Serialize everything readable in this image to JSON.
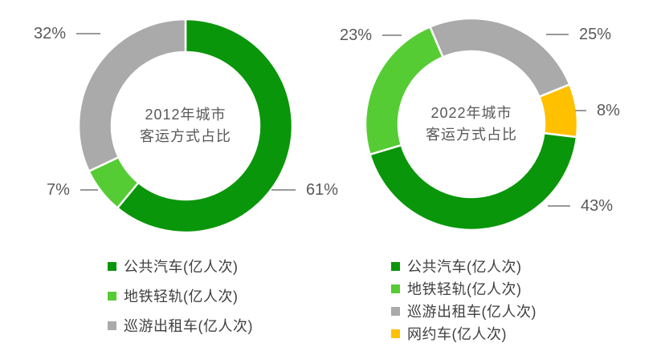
{
  "page": {
    "background": "#ffffff"
  },
  "colors": {
    "bus_green": "#0a960a",
    "metro_light_green": "#55cc33",
    "taxi_gray": "#aaaaaa",
    "ridehailing_orange": "#ffc000",
    "label_text": "#595959",
    "legend_text": "#404040",
    "callout_line": "#999999"
  },
  "chart_data": [
    {
      "type": "pie",
      "subtype": "donut",
      "title": "2012年城市客运方式占比",
      "title_lines": [
        "2012年城市",
        "客运方式占比"
      ],
      "start_angle": 0,
      "legend_position": "bottom",
      "slices": [
        {
          "key": "bus",
          "label": "公共汽车(亿人次)",
          "value": 61,
          "display": "61%",
          "color": "#0a960a"
        },
        {
          "key": "metro",
          "label": "地铁轻轨(亿人次)",
          "value": 7,
          "display": "7%",
          "color": "#55cc33"
        },
        {
          "key": "taxi",
          "label": "巡游出租车(亿人次)",
          "value": 32,
          "display": "32%",
          "color": "#aaaaaa"
        }
      ],
      "legend": [
        {
          "key": "bus",
          "label": "公共汽车(亿人次)",
          "color": "#0a960a"
        },
        {
          "key": "metro",
          "label": "地铁轻轨(亿人次)",
          "color": "#55cc33"
        },
        {
          "key": "taxi",
          "label": "巡游出租车(亿人次)",
          "color": "#aaaaaa"
        }
      ]
    },
    {
      "type": "pie",
      "subtype": "donut",
      "title": "2022年城市客运方式占比",
      "title_lines": [
        "2022年城市",
        "客运方式占比"
      ],
      "start_angle": -23,
      "legend_position": "bottom",
      "slices": [
        {
          "key": "taxi",
          "label": "巡游出租车(亿人次)",
          "value": 25,
          "display": "25%",
          "color": "#aaaaaa"
        },
        {
          "key": "ridehailing",
          "label": "网约车(亿人次)",
          "value": 8,
          "display": "8%",
          "color": "#ffc000"
        },
        {
          "key": "bus",
          "label": "公共汽车(亿人次)",
          "value": 43,
          "display": "43%",
          "color": "#0a960a"
        },
        {
          "key": "metro",
          "label": "地铁轻轨(亿人次)",
          "value": 23,
          "display": "23%",
          "color": "#55cc33"
        }
      ],
      "legend": [
        {
          "key": "bus",
          "label": "公共汽车(亿人次)",
          "color": "#0a960a"
        },
        {
          "key": "metro",
          "label": "地铁轻轨(亿人次)",
          "color": "#55cc33"
        },
        {
          "key": "taxi",
          "label": "巡游出租车(亿人次)",
          "color": "#aaaaaa"
        },
        {
          "key": "ridehailing",
          "label": "网约车(亿人次)",
          "color": "#ffc000"
        }
      ]
    }
  ]
}
